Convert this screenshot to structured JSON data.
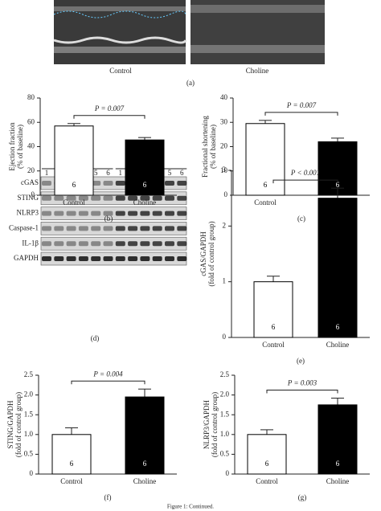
{
  "figure": {
    "echo_labels": [
      "Control",
      "Choline"
    ],
    "echo_panel": "(a)",
    "blot": {
      "groups": [
        "Control",
        "Choline"
      ],
      "lanes": [
        "1",
        "2",
        "3",
        "4",
        "5",
        "6",
        "1",
        "2",
        "3",
        "4",
        "5",
        "6"
      ],
      "rows": [
        "cGAS",
        "STING",
        "NLRP3",
        "Caspase-1",
        "IL-1β",
        "GAPDH"
      ],
      "panel": "(d)"
    },
    "caption": "Figure 1: Continued."
  },
  "chart_data": [
    {
      "type": "bar",
      "panel": "(b)",
      "ylabel": [
        "Ejection fraction",
        "(% of baseline)"
      ],
      "categories": [
        "Control",
        "Choline"
      ],
      "values": [
        57,
        45.5
      ],
      "errors": [
        2,
        2
      ],
      "colors": [
        "#ffffff",
        "#000000"
      ],
      "n_labels": [
        "6",
        "6"
      ],
      "annotation": "P = 0.007",
      "ylim": [
        0,
        80
      ],
      "yticks": [
        0,
        20,
        40,
        60,
        80
      ]
    },
    {
      "type": "bar",
      "panel": "(c)",
      "ylabel": [
        "Fractional shortening",
        "(% of baseline)"
      ],
      "categories": [
        "Control",
        "Choline"
      ],
      "values": [
        29.5,
        22
      ],
      "errors": [
        1.3,
        1.5
      ],
      "colors": [
        "#ffffff",
        "#000000"
      ],
      "n_labels": [
        "6",
        "6"
      ],
      "annotation": "P = 0.007",
      "ylim": [
        0,
        40
      ],
      "yticks": [
        0,
        10,
        20,
        30,
        40
      ]
    },
    {
      "type": "bar",
      "panel": "(e)",
      "ylabel": [
        "cGAS/GAPDH",
        "(fold of control group)"
      ],
      "categories": [
        "Control",
        "Choline"
      ],
      "values": [
        1.0,
        2.5
      ],
      "errors": [
        0.1,
        0.18
      ],
      "colors": [
        "#ffffff",
        "#000000"
      ],
      "n_labels": [
        "6",
        "6"
      ],
      "annotation": "P < 0.001",
      "ylim": [
        0,
        3
      ],
      "yticks": [
        0,
        1,
        2,
        3
      ]
    },
    {
      "type": "bar",
      "panel": "(f)",
      "ylabel": [
        "STING/GAPDH",
        "(fold of control group)"
      ],
      "categories": [
        "Control",
        "Choline"
      ],
      "values": [
        1.0,
        1.95
      ],
      "errors": [
        0.17,
        0.2
      ],
      "colors": [
        "#ffffff",
        "#000000"
      ],
      "n_labels": [
        "6",
        "6"
      ],
      "annotation": "P = 0.004",
      "ylim": [
        0,
        2.5
      ],
      "yticks": [
        0,
        0.5,
        {
          "value": 1,
          "label": "1.0"
        },
        1.5,
        {
          "value": 2,
          "label": "2.0"
        },
        2.5
      ]
    },
    {
      "type": "bar",
      "panel": "(g)",
      "ylabel": [
        "NLRP3/GAPDH",
        "(fold of control group)"
      ],
      "categories": [
        "Control",
        "Choline"
      ],
      "values": [
        1.0,
        1.75
      ],
      "errors": [
        0.12,
        0.17
      ],
      "colors": [
        "#ffffff",
        "#000000"
      ],
      "n_labels": [
        "6",
        "6"
      ],
      "annotation": "P = 0.003",
      "ylim": [
        0,
        2.5
      ],
      "yticks": [
        0,
        0.5,
        {
          "value": 1,
          "label": "1.0"
        },
        1.5,
        {
          "value": 2,
          "label": "2.0"
        },
        2.5
      ]
    }
  ]
}
